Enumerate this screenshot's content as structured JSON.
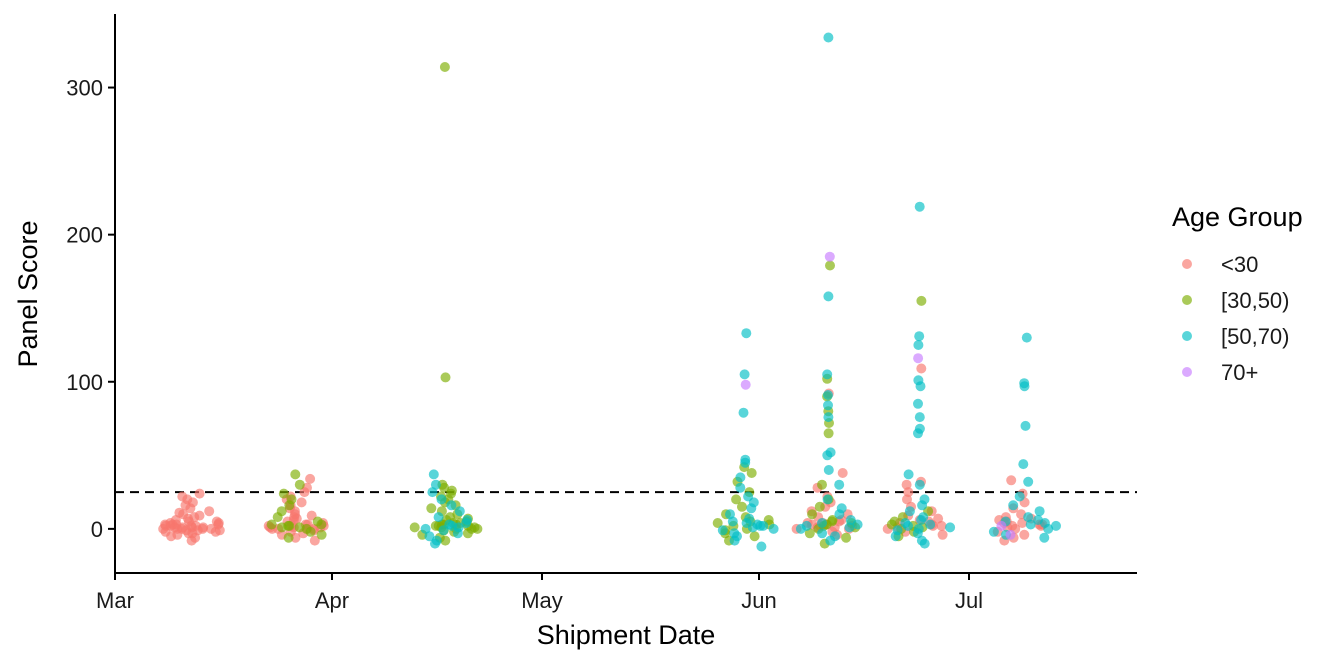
{
  "chart_data": {
    "type": "scatter",
    "xlabel": "Shipment Date",
    "ylabel": "Panel Score",
    "x_axis_type": "date",
    "xlim": [
      "2020-03-01",
      "2020-07-25"
    ],
    "ylim": [
      -30,
      350
    ],
    "x_ticks": [
      {
        "date": "2020-03-01",
        "label": "Mar"
      },
      {
        "date": "2020-04-01",
        "label": "Apr"
      },
      {
        "date": "2020-05-01",
        "label": "May"
      },
      {
        "date": "2020-06-01",
        "label": "Jun"
      },
      {
        "date": "2020-07-01",
        "label": "Jul"
      }
    ],
    "y_ticks": [
      0,
      100,
      200,
      300
    ],
    "reference_line": {
      "y": 25,
      "style": "dashed",
      "color": "#000000"
    },
    "grid": false,
    "legend": {
      "title": "Age Group",
      "placement": "right"
    },
    "series": [
      {
        "name": "<30",
        "color": "#F8766D",
        "clusters": [
          {
            "date": "2020-03-12",
            "values": [
              -8,
              -6,
              -5,
              -4,
              -3,
              -3,
              -2,
              -2,
              -1,
              -1,
              0,
              0,
              0,
              0,
              1,
              1,
              1,
              2,
              2,
              2,
              3,
              3,
              3,
              4,
              4,
              5,
              5,
              6,
              7,
              8,
              9,
              10,
              11,
              12,
              14,
              16,
              18,
              20,
              22,
              24,
              1,
              0,
              2,
              -1,
              3
            ]
          },
          {
            "date": "2020-03-27",
            "values": [
              -8,
              -6,
              -4,
              -3,
              -2,
              -1,
              0,
              0,
              0,
              1,
              1,
              2,
              2,
              3,
              3,
              4,
              5,
              6,
              7,
              8,
              9,
              10,
              12,
              14,
              16,
              18,
              20,
              22,
              25,
              28,
              34,
              2,
              1,
              0
            ]
          },
          {
            "date": "2020-06-11",
            "values": [
              -4,
              -2,
              0,
              1,
              2,
              3,
              4,
              5,
              6,
              8,
              10,
              12,
              15,
              18,
              22,
              28,
              38,
              92,
              2,
              1,
              3,
              4,
              0
            ]
          },
          {
            "date": "2020-06-24",
            "values": [
              -4,
              -2,
              0,
              1,
              2,
              3,
              5,
              7,
              9,
              12,
              15,
              20,
              25,
              30,
              32,
              109,
              2,
              4,
              6
            ]
          },
          {
            "date": "2020-07-09",
            "values": [
              -8,
              -6,
              -4,
              -2,
              0,
              1,
              2,
              3,
              4,
              5,
              6,
              7,
              8,
              10,
              14,
              18,
              24,
              33,
              2,
              4,
              3
            ]
          }
        ]
      },
      {
        "name": "[30,50)",
        "color": "#7CAE00",
        "clusters": [
          {
            "date": "2020-03-27",
            "values": [
              -6,
              -4,
              -2,
              0,
              1,
              2,
              3,
              5,
              8,
              12,
              16,
              20,
              24,
              30,
              37,
              2,
              1,
              3
            ]
          },
          {
            "date": "2020-04-17",
            "values": [
              -8,
              -6,
              -4,
              -3,
              -2,
              -1,
              0,
              0,
              1,
              1,
              2,
              2,
              3,
              3,
              4,
              5,
              6,
              7,
              8,
              10,
              12,
              14,
              16,
              18,
              20,
              22,
              24,
              26,
              28,
              30,
              103,
              314,
              1,
              2,
              3,
              0,
              4
            ]
          },
          {
            "date": "2020-05-30",
            "values": [
              -8,
              -5,
              -3,
              -1,
              0,
              2,
              4,
              6,
              8,
              10,
              15,
              20,
              25,
              32,
              38,
              42,
              3,
              5
            ]
          },
          {
            "date": "2020-06-11",
            "values": [
              -10,
              -6,
              -3,
              0,
              2,
              4,
              6,
              10,
              15,
              20,
              30,
              65,
              72,
              80,
              90,
              102,
              179,
              3,
              5,
              1
            ]
          },
          {
            "date": "2020-06-24",
            "values": [
              -5,
              -2,
              0,
              2,
              5,
              8,
              12,
              155,
              3,
              1
            ]
          }
        ]
      },
      {
        "name": "[50,70)",
        "color": "#00BFC4",
        "clusters": [
          {
            "date": "2020-04-17",
            "values": [
              -10,
              -8,
              -5,
              -3,
              -1,
              0,
              2,
              4,
              6,
              8,
              12,
              16,
              20,
              25,
              30,
              37,
              1,
              3
            ]
          },
          {
            "date": "2020-05-30",
            "values": [
              -12,
              -8,
              -5,
              -3,
              -1,
              0,
              1,
              2,
              3,
              5,
              7,
              10,
              14,
              18,
              22,
              28,
              35,
              45,
              47,
              79,
              105,
              133,
              2,
              4
            ]
          },
          {
            "date": "2020-06-11",
            "values": [
              -8,
              -5,
              -3,
              0,
              2,
              4,
              6,
              10,
              14,
              20,
              30,
              40,
              50,
              52,
              76,
              84,
              91,
              105,
              158,
              334,
              3,
              1
            ]
          },
          {
            "date": "2020-06-24",
            "values": [
              -10,
              -8,
              -5,
              -3,
              -1,
              0,
              2,
              4,
              6,
              8,
              12,
              16,
              20,
              30,
              37,
              65,
              68,
              76,
              85,
              97,
              101,
              125,
              131,
              219,
              3,
              1
            ]
          },
          {
            "date": "2020-07-09",
            "values": [
              -6,
              -4,
              -2,
              0,
              2,
              4,
              6,
              8,
              12,
              16,
              22,
              32,
              44,
              70,
              97,
              99,
              130,
              3,
              5
            ]
          }
        ]
      },
      {
        "name": "70+",
        "color": "#C77CFF",
        "clusters": [
          {
            "date": "2020-05-30",
            "values": [
              98
            ]
          },
          {
            "date": "2020-06-11",
            "values": [
              185
            ]
          },
          {
            "date": "2020-06-24",
            "values": [
              116
            ]
          },
          {
            "date": "2020-07-09",
            "values": [
              -4,
              2
            ]
          }
        ]
      }
    ]
  }
}
